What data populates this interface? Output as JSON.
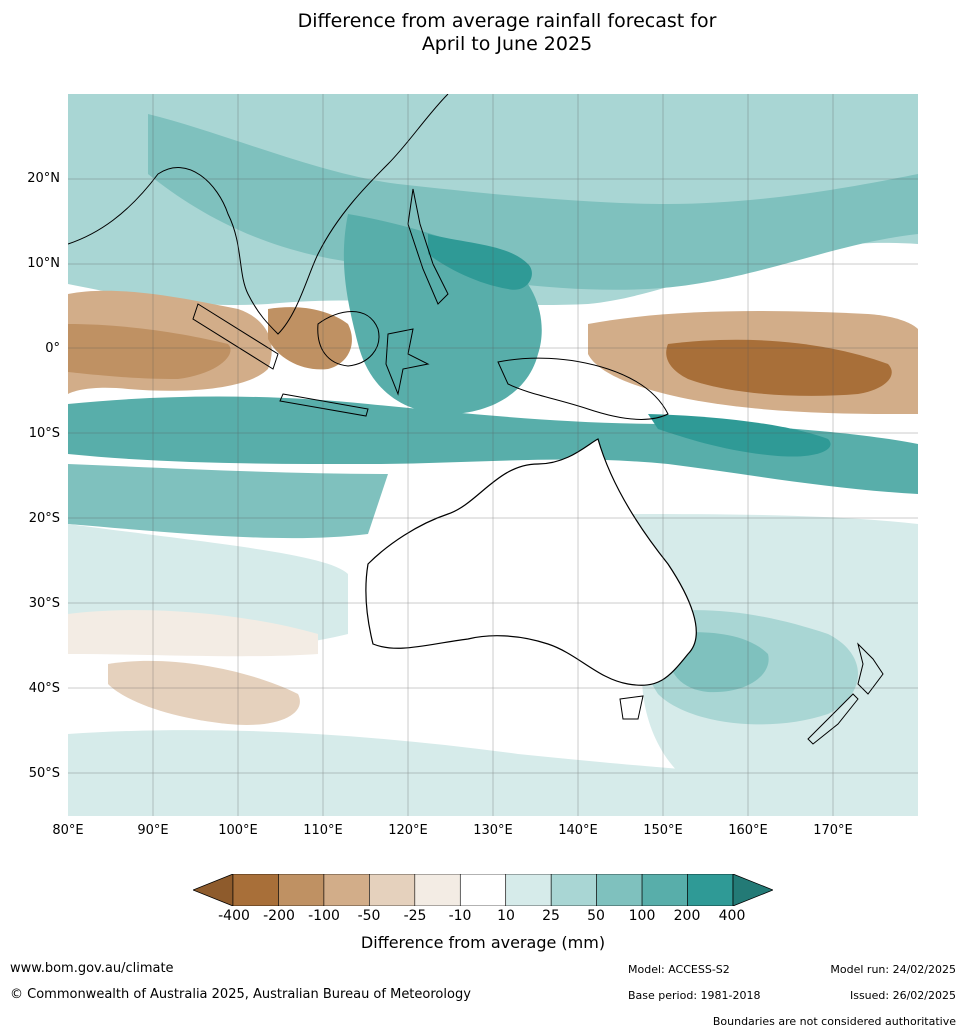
{
  "title_line1": "Difference from average rainfall forecast for",
  "title_line2": "April to June 2025",
  "lat_labels": [
    "20°N",
    "10°N",
    "0°",
    "10°S",
    "20°S",
    "30°S",
    "40°S",
    "50°S"
  ],
  "lon_labels": [
    "80°E",
    "90°E",
    "100°E",
    "110°E",
    "120°E",
    "130°E",
    "140°E",
    "150°E",
    "160°E",
    "170°E"
  ],
  "colorbar": {
    "ticks": [
      "-400",
      "-200",
      "-100",
      "-50",
      "-25",
      "-10",
      "10",
      "25",
      "50",
      "100",
      "200",
      "400"
    ],
    "colors": [
      "#a86f39",
      "#bf9163",
      "#d2ad89",
      "#e5d1bd",
      "#f3ece4",
      "#ffffff",
      "#d6ebea",
      "#a9d6d4",
      "#7fc1be",
      "#58aeaa",
      "#2f9a96"
    ],
    "extend_low_color": "#8e5b2c",
    "extend_high_color": "#237a76",
    "title": "Difference from average (mm)"
  },
  "footer": {
    "url": "www.bom.gov.au/climate",
    "copyright": "© Commonwealth of Australia 2025, Australian Bureau of Meteorology",
    "model": "Model: ACCESS-S2",
    "base_period": "Base period: 1981-2018",
    "model_run": "Model run: 24/02/2025",
    "issued": "Issued: 26/02/2025",
    "disclaimer": "Boundaries are not considered authoritative"
  }
}
